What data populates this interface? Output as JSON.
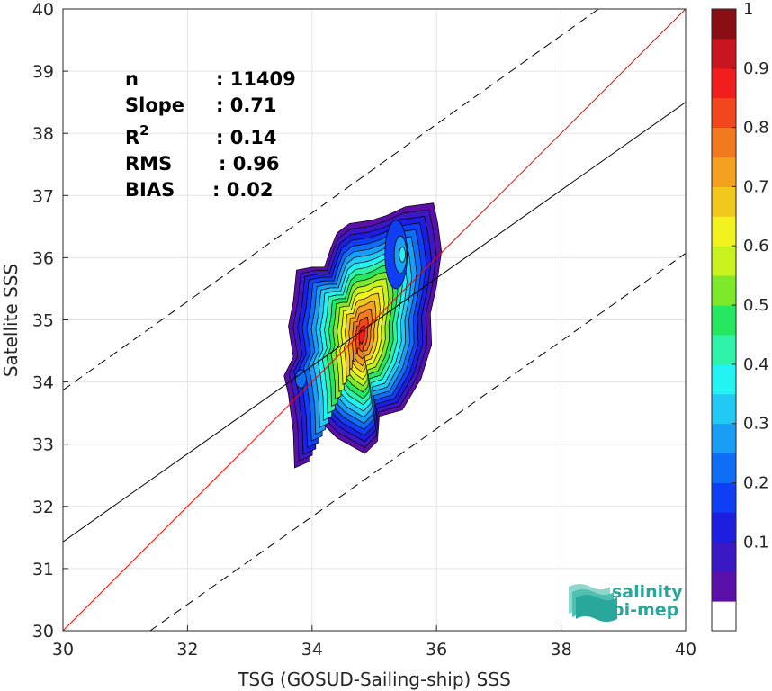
{
  "chart_data": {
    "type": "heatmap",
    "title": "",
    "xlabel": "TSG (GOSUD-Sailing-ship) SSS",
    "ylabel": "Satellite SSS",
    "xlim": [
      30,
      40
    ],
    "ylim": [
      30,
      40
    ],
    "xticks": [
      30,
      32,
      34,
      36,
      38,
      40
    ],
    "yticks": [
      30,
      31,
      32,
      33,
      34,
      35,
      36,
      37,
      38,
      39,
      40
    ],
    "grid": true,
    "colorbar": {
      "ticks": [
        0.1,
        0.2,
        0.3,
        0.4,
        0.5,
        0.6,
        0.7,
        0.8,
        0.9,
        1
      ],
      "tick_labels": [
        "0.1",
        "0.2",
        "0.3",
        "0.4",
        "0.5",
        "0.6",
        "0.7",
        "0.8",
        "0.9",
        "1"
      ],
      "range": [
        0,
        1
      ],
      "levels": 20,
      "colors": [
        "#ffffff",
        "#5a0fa8",
        "#3a19c4",
        "#1e1ee0",
        "#0f3ef5",
        "#0f6ef5",
        "#1a9ef5",
        "#22c9f2",
        "#22f2f2",
        "#2df2a8",
        "#26e860",
        "#7ee82a",
        "#c8f21e",
        "#f2f21e",
        "#f2c81e",
        "#f2a01e",
        "#f27a1e",
        "#f2461e",
        "#f21e1e",
        "#c8141e",
        "#8a0f14"
      ]
    },
    "lines": [
      {
        "name": "identity",
        "color": "#ff0000",
        "x": [
          30,
          40
        ],
        "y": [
          30,
          40
        ]
      },
      {
        "name": "fit",
        "color": "#000000",
        "x": [
          30,
          40
        ],
        "y": [
          31.43,
          38.5
        ]
      },
      {
        "name": "fit-plus",
        "color": "#000000",
        "dashed": true,
        "x": [
          30,
          38.6
        ],
        "y": [
          33.87,
          40
        ]
      },
      {
        "name": "fit-minus",
        "color": "#000000",
        "dashed": true,
        "x": [
          31.4,
          40
        ],
        "y": [
          30,
          36.07
        ]
      }
    ],
    "density_peak": {
      "x": 34.8,
      "y": 34.75
    },
    "density_extent": {
      "x": [
        33.6,
        36.1
      ],
      "y": [
        32.6,
        36.9
      ]
    },
    "stats": [
      {
        "label": "n",
        "value": ": 11409"
      },
      {
        "label": "Slope",
        "value": ": 0.71"
      },
      {
        "label": "R",
        "sup": "2",
        "value": ": 0.14"
      },
      {
        "label": "RMS",
        "value": ": 0.96"
      },
      {
        "label": "BIAS",
        "value": ": 0.02"
      }
    ]
  },
  "logo": {
    "line1": "salinity",
    "line2": "pi-mep"
  }
}
